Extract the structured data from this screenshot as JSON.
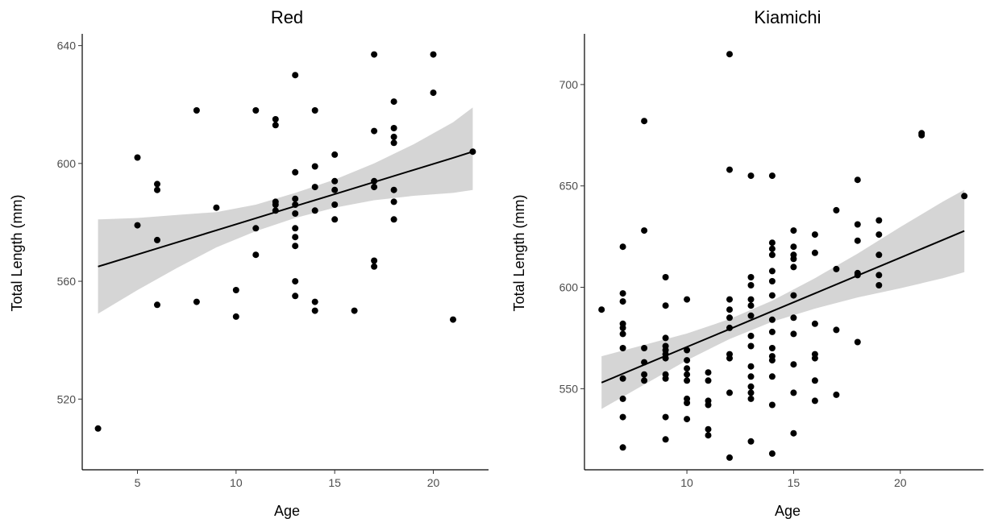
{
  "chart_data": [
    {
      "type": "scatter",
      "title": "Red",
      "xlabel": "Age",
      "ylabel": "Total Length (mm)",
      "xlim": [
        2.2,
        22.8
      ],
      "ylim": [
        496,
        644
      ],
      "xticks": [
        5,
        10,
        15,
        20
      ],
      "yticks": [
        520,
        560,
        600,
        640
      ],
      "grid": false,
      "points": [
        [
          3,
          510
        ],
        [
          5,
          602
        ],
        [
          5,
          579
        ],
        [
          6,
          593
        ],
        [
          6,
          591
        ],
        [
          6,
          574
        ],
        [
          6,
          552
        ],
        [
          8,
          618
        ],
        [
          8,
          553
        ],
        [
          9,
          585
        ],
        [
          10,
          557
        ],
        [
          10,
          548
        ],
        [
          11,
          618
        ],
        [
          11,
          578
        ],
        [
          11,
          569
        ],
        [
          12,
          615
        ],
        [
          12,
          613
        ],
        [
          12,
          587
        ],
        [
          12,
          586
        ],
        [
          12,
          584
        ],
        [
          13,
          630
        ],
        [
          13,
          597
        ],
        [
          13,
          588
        ],
        [
          13,
          586
        ],
        [
          13,
          583
        ],
        [
          13,
          578
        ],
        [
          13,
          575
        ],
        [
          13,
          572
        ],
        [
          13,
          560
        ],
        [
          13,
          555
        ],
        [
          14,
          618
        ],
        [
          14,
          599
        ],
        [
          14,
          592
        ],
        [
          14,
          584
        ],
        [
          14,
          553
        ],
        [
          14,
          550
        ],
        [
          15,
          603
        ],
        [
          15,
          594
        ],
        [
          15,
          591
        ],
        [
          15,
          586
        ],
        [
          15,
          581
        ],
        [
          16,
          550
        ],
        [
          17,
          637
        ],
        [
          17,
          611
        ],
        [
          17,
          594
        ],
        [
          17,
          592
        ],
        [
          17,
          567
        ],
        [
          17,
          565
        ],
        [
          18,
          621
        ],
        [
          18,
          612
        ],
        [
          18,
          609
        ],
        [
          18,
          607
        ],
        [
          18,
          591
        ],
        [
          18,
          587
        ],
        [
          18,
          581
        ],
        [
          20,
          637
        ],
        [
          20,
          624
        ],
        [
          21,
          547
        ],
        [
          22,
          604
        ]
      ],
      "trend": {
        "x": [
          3,
          5,
          7,
          9,
          11,
          13,
          15,
          17,
          19,
          21,
          22
        ],
        "fit": [
          565,
          569.1,
          573.2,
          577.3,
          581.4,
          585.5,
          589.6,
          593.7,
          597.8,
          601.9,
          604
        ],
        "lower": [
          549,
          557,
          564.5,
          571.5,
          577,
          581.5,
          585,
          587.5,
          589,
          590,
          591
        ],
        "upper": [
          581,
          581.5,
          582.5,
          583.5,
          586,
          590,
          594.5,
          600,
          606.5,
          614,
          619
        ]
      }
    },
    {
      "type": "scatter",
      "title": "Kiamichi",
      "xlabel": "Age",
      "ylabel": "Total Length (mm)",
      "xlim": [
        5.2,
        23.9
      ],
      "ylim": [
        510,
        725
      ],
      "xticks": [
        10,
        15,
        20
      ],
      "yticks": [
        550,
        600,
        650,
        700
      ],
      "grid": false,
      "points": [
        [
          6,
          589
        ],
        [
          7,
          620
        ],
        [
          7,
          597
        ],
        [
          7,
          593
        ],
        [
          7,
          582
        ],
        [
          7,
          580
        ],
        [
          7,
          577
        ],
        [
          7,
          570
        ],
        [
          7,
          555
        ],
        [
          7,
          545
        ],
        [
          7,
          536
        ],
        [
          7,
          521
        ],
        [
          8,
          682
        ],
        [
          8,
          628
        ],
        [
          8,
          570
        ],
        [
          8,
          563
        ],
        [
          8,
          557
        ],
        [
          8,
          554
        ],
        [
          9,
          605
        ],
        [
          9,
          591
        ],
        [
          9,
          575
        ],
        [
          9,
          571
        ],
        [
          9,
          569
        ],
        [
          9,
          567
        ],
        [
          9,
          565
        ],
        [
          9,
          557
        ],
        [
          9,
          555
        ],
        [
          9,
          536
        ],
        [
          9,
          525
        ],
        [
          10,
          594
        ],
        [
          10,
          569
        ],
        [
          10,
          564
        ],
        [
          10,
          560
        ],
        [
          10,
          557
        ],
        [
          10,
          554
        ],
        [
          10,
          545
        ],
        [
          10,
          543
        ],
        [
          10,
          535
        ],
        [
          11,
          558
        ],
        [
          11,
          554
        ],
        [
          11,
          544
        ],
        [
          11,
          542
        ],
        [
          11,
          530
        ],
        [
          11,
          527
        ],
        [
          12,
          715
        ],
        [
          12,
          658
        ],
        [
          12,
          594
        ],
        [
          12,
          589
        ],
        [
          12,
          585
        ],
        [
          12,
          580
        ],
        [
          12,
          567
        ],
        [
          12,
          565
        ],
        [
          12,
          548
        ],
        [
          12,
          516
        ],
        [
          13,
          655
        ],
        [
          13,
          605
        ],
        [
          13,
          601
        ],
        [
          13,
          594
        ],
        [
          13,
          591
        ],
        [
          13,
          586
        ],
        [
          13,
          576
        ],
        [
          13,
          571
        ],
        [
          13,
          561
        ],
        [
          13,
          556
        ],
        [
          13,
          551
        ],
        [
          13,
          548
        ],
        [
          13,
          545
        ],
        [
          13,
          524
        ],
        [
          14,
          655
        ],
        [
          14,
          622
        ],
        [
          14,
          619
        ],
        [
          14,
          616
        ],
        [
          14,
          608
        ],
        [
          14,
          603
        ],
        [
          14,
          596
        ],
        [
          14,
          584
        ],
        [
          14,
          578
        ],
        [
          14,
          570
        ],
        [
          14,
          566
        ],
        [
          14,
          564
        ],
        [
          14,
          556
        ],
        [
          14,
          542
        ],
        [
          14,
          518
        ],
        [
          15,
          628
        ],
        [
          15,
          620
        ],
        [
          15,
          616
        ],
        [
          15,
          614
        ],
        [
          15,
          610
        ],
        [
          15,
          596
        ],
        [
          15,
          585
        ],
        [
          15,
          577
        ],
        [
          15,
          562
        ],
        [
          15,
          548
        ],
        [
          15,
          528
        ],
        [
          16,
          626
        ],
        [
          16,
          617
        ],
        [
          16,
          582
        ],
        [
          16,
          567
        ],
        [
          16,
          565
        ],
        [
          16,
          554
        ],
        [
          16,
          544
        ],
        [
          17,
          638
        ],
        [
          17,
          609
        ],
        [
          17,
          579
        ],
        [
          17,
          547
        ],
        [
          18,
          653
        ],
        [
          18,
          631
        ],
        [
          18,
          623
        ],
        [
          18,
          607
        ],
        [
          18,
          606
        ],
        [
          18,
          573
        ],
        [
          19,
          633
        ],
        [
          19,
          626
        ],
        [
          19,
          616
        ],
        [
          19,
          606
        ],
        [
          19,
          601
        ],
        [
          21,
          676
        ],
        [
          21,
          675
        ],
        [
          23,
          645
        ]
      ],
      "trend": {
        "x": [
          6,
          8,
          10,
          12,
          14,
          16,
          18,
          20,
          22,
          23
        ],
        "fit": [
          553,
          561.8,
          570.6,
          579.4,
          588.2,
          597,
          605.8,
          614.6,
          623.4,
          627.8
        ],
        "lower": [
          540,
          552,
          564,
          574.5,
          583,
          589.5,
          595,
          599.5,
          604.5,
          607.5
        ],
        "upper": [
          566,
          571.6,
          577.2,
          584.3,
          593.4,
          604.5,
          616.6,
          629.7,
          642.3,
          648.1
        ]
      }
    }
  ]
}
